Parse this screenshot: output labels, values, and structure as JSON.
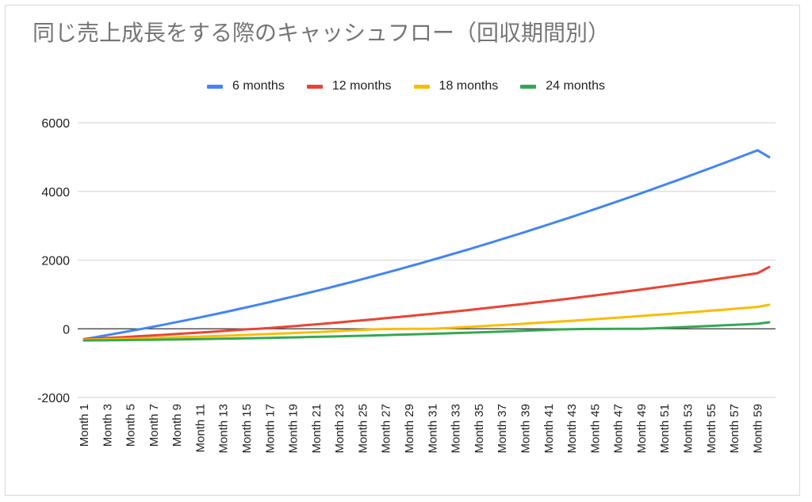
{
  "chart_data": {
    "type": "line",
    "title": "同じ売上成長をする際のキャッシュフロー（回収期間別）",
    "xlabel": "",
    "ylabel": "",
    "ylim": [
      -2000,
      6000
    ],
    "yticks": [
      "6000",
      "4000",
      "2000",
      "0",
      "-2000"
    ],
    "ytick_values": [
      6000,
      4000,
      2000,
      0,
      -2000
    ],
    "grid": true,
    "legend_position": "top",
    "x_tick_labels": [
      "Month 1",
      "Month 3",
      "Month 5",
      "Month 7",
      "Month 9",
      "Month 11",
      "Month 13",
      "Month 15",
      "Month 17",
      "Month 19",
      "Month 21",
      "Month 23",
      "Month 25",
      "Month 27",
      "Month 29",
      "Month 31",
      "Month 33",
      "Month 35",
      "Month 37",
      "Month 39",
      "Month 41",
      "Month 43",
      "Month 45",
      "Month 47",
      "Month 49",
      "Month 51",
      "Month 53",
      "Month 55",
      "Month 57",
      "Month 59"
    ],
    "n_categories": 60,
    "series": [
      {
        "name": "6 months",
        "color": "#4285f4",
        "values": [
          -300,
          -243,
          -184,
          -124,
          -62,
          0,
          64,
          129,
          196,
          264,
          333,
          404,
          476,
          550,
          625,
          701,
          779,
          858,
          938,
          1020,
          1103,
          1187,
          1273,
          1360,
          1448,
          1538,
          1629,
          1721,
          1815,
          1910,
          2006,
          2103,
          2202,
          2302,
          2404,
          2506,
          2610,
          2715,
          2821,
          2929,
          3038,
          3148,
          3259,
          3371,
          3485,
          3600,
          3716,
          3833,
          3951,
          4071,
          4192,
          4313,
          4436,
          4561,
          4686,
          4812,
          4940,
          5069,
          5198,
          5000
        ]
      },
      {
        "name": "12 months",
        "color": "#ea4335",
        "values": [
          -300,
          -284,
          -267,
          -249,
          -231,
          -212,
          -193,
          -173,
          -152,
          -131,
          -109,
          -87,
          -64,
          -40,
          -16,
          0,
          24,
          50,
          76,
          103,
          131,
          159,
          188,
          217,
          247,
          278,
          309,
          341,
          373,
          406,
          440,
          474,
          509,
          544,
          580,
          617,
          654,
          692,
          730,
          769,
          808,
          848,
          889,
          930,
          972,
          1014,
          1057,
          1101,
          1145,
          1190,
          1235,
          1281,
          1328,
          1375,
          1423,
          1471,
          1520,
          1570,
          1620,
          1800
        ]
      },
      {
        "name": "18 months",
        "color": "#fbbc04",
        "values": [
          -320,
          -312,
          -304,
          -296,
          -287,
          -278,
          -268,
          -258,
          -248,
          -237,
          -226,
          -215,
          -203,
          -191,
          -178,
          -165,
          -152,
          -138,
          -124,
          -110,
          -95,
          -80,
          -64,
          -48,
          -32,
          -15,
          -8,
          -4,
          -2,
          -1,
          0,
          17,
          35,
          53,
          72,
          91,
          110,
          130,
          150,
          171,
          192,
          213,
          235,
          257,
          280,
          303,
          326,
          350,
          374,
          399,
          424,
          449,
          475,
          501,
          528,
          555,
          582,
          610,
          638,
          700
        ]
      },
      {
        "name": "24 months",
        "color": "#34a853",
        "values": [
          -340,
          -337,
          -334,
          -331,
          -327,
          -323,
          -319,
          -315,
          -310,
          -305,
          -300,
          -295,
          -289,
          -283,
          -277,
          -271,
          -264,
          -257,
          -250,
          -243,
          -235,
          -227,
          -219,
          -211,
          -202,
          -193,
          -184,
          -175,
          -165,
          -155,
          -145,
          -135,
          -124,
          -113,
          -102,
          -91,
          -79,
          -67,
          -55,
          -43,
          -30,
          -17,
          -10,
          -6,
          -4,
          -3,
          -2,
          -1,
          0,
          13,
          27,
          41,
          55,
          70,
          85,
          100,
          115,
          131,
          147,
          190
        ]
      }
    ]
  }
}
